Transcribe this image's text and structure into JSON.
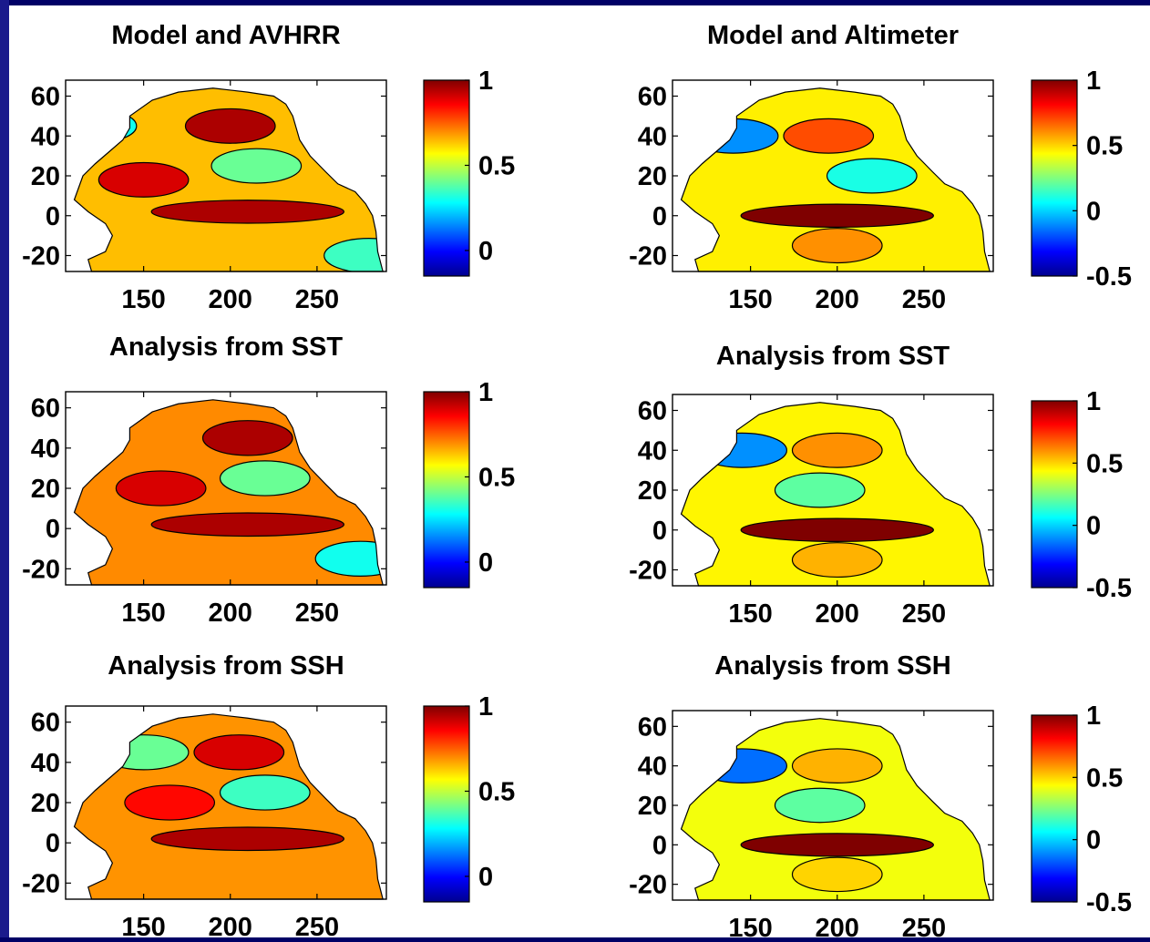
{
  "colors": {
    "background_frame": "#000066",
    "land": "#ffffff",
    "contour": "#000000",
    "colormap": [
      "#00008f",
      "#0000ff",
      "#007fff",
      "#00ffff",
      "#7fff7f",
      "#ffff00",
      "#ff7f00",
      "#ff0000",
      "#7f0000"
    ]
  },
  "chart_data": [
    {
      "type": "heatmap",
      "panel": "top-left",
      "title": "Model and AVHRR",
      "xticks": [
        "150",
        "200",
        "250"
      ],
      "yticks": [
        "60",
        "40",
        "20",
        "0",
        "-20"
      ],
      "xlim": [
        105,
        290
      ],
      "ylim": [
        -28,
        68
      ],
      "colorbar": {
        "ticks": [
          "1",
          "0.5",
          "0"
        ],
        "range": [
          -0.15,
          1
        ]
      },
      "regions": [
        {
          "lon": 200,
          "lat": 45,
          "value": 0.95
        },
        {
          "lon": 150,
          "lat": 18,
          "value": 0.9
        },
        {
          "lon": 210,
          "lat": 2,
          "value": 0.95
        },
        {
          "lon": 215,
          "lat": 25,
          "value": 0.4
        },
        {
          "lon": 280,
          "lat": -20,
          "value": 0.35
        },
        {
          "lon": 120,
          "lat": 45,
          "value": 0.3
        }
      ]
    },
    {
      "type": "heatmap",
      "panel": "top-right",
      "title": "Model and Altimeter",
      "xticks": [
        "150",
        "200",
        "250"
      ],
      "yticks": [
        "60",
        "40",
        "20",
        "0",
        "-20"
      ],
      "xlim": [
        105,
        290
      ],
      "ylim": [
        -28,
        68
      ],
      "colorbar": {
        "ticks": [
          "1",
          "0.5",
          "0",
          "-0.5"
        ],
        "range": [
          -0.5,
          1
        ]
      },
      "regions": [
        {
          "lon": 200,
          "lat": 0,
          "value": 1.0
        },
        {
          "lon": 195,
          "lat": 40,
          "value": 0.7
        },
        {
          "lon": 220,
          "lat": 20,
          "value": 0.1
        },
        {
          "lon": 140,
          "lat": 40,
          "value": -0.1
        },
        {
          "lon": 200,
          "lat": -15,
          "value": 0.6
        }
      ]
    },
    {
      "type": "heatmap",
      "panel": "middle-left",
      "title": "Analysis from SST",
      "xticks": [
        "150",
        "200",
        "250"
      ],
      "yticks": [
        "60",
        "40",
        "20",
        "0",
        "-20"
      ],
      "xlim": [
        105,
        290
      ],
      "ylim": [
        -28,
        68
      ],
      "colorbar": {
        "ticks": [
          "1",
          "0.5",
          "0"
        ],
        "range": [
          -0.15,
          1
        ]
      },
      "regions": [
        {
          "lon": 210,
          "lat": 45,
          "value": 0.95
        },
        {
          "lon": 160,
          "lat": 20,
          "value": 0.9
        },
        {
          "lon": 210,
          "lat": 2,
          "value": 0.95
        },
        {
          "lon": 220,
          "lat": 25,
          "value": 0.4
        },
        {
          "lon": 275,
          "lat": -15,
          "value": 0.3
        }
      ]
    },
    {
      "type": "heatmap",
      "panel": "middle-right",
      "title": "Analysis from SST",
      "xticks": [
        "150",
        "200",
        "250"
      ],
      "yticks": [
        "60",
        "40",
        "20",
        "0",
        "-20"
      ],
      "xlim": [
        105,
        290
      ],
      "ylim": [
        -28,
        68
      ],
      "colorbar": {
        "ticks": [
          "1",
          "0.5",
          "0",
          "-0.5"
        ],
        "range": [
          -0.5,
          1
        ]
      },
      "regions": [
        {
          "lon": 200,
          "lat": 0,
          "value": 1.0
        },
        {
          "lon": 200,
          "lat": 40,
          "value": 0.6
        },
        {
          "lon": 190,
          "lat": 20,
          "value": 0.2
        },
        {
          "lon": 145,
          "lat": 40,
          "value": -0.1
        },
        {
          "lon": 200,
          "lat": -15,
          "value": 0.55
        }
      ]
    },
    {
      "type": "heatmap",
      "panel": "bottom-left",
      "title": "Analysis from SSH",
      "xticks": [
        "150",
        "200",
        "250"
      ],
      "yticks": [
        "60",
        "40",
        "20",
        "0",
        "-20"
      ],
      "xlim": [
        105,
        290
      ],
      "ylim": [
        -28,
        68
      ],
      "colorbar": {
        "ticks": [
          "1",
          "0.5",
          "0"
        ],
        "range": [
          -0.15,
          1
        ]
      },
      "regions": [
        {
          "lon": 205,
          "lat": 45,
          "value": 0.9
        },
        {
          "lon": 165,
          "lat": 20,
          "value": 0.85
        },
        {
          "lon": 210,
          "lat": 2,
          "value": 0.95
        },
        {
          "lon": 220,
          "lat": 25,
          "value": 0.35
        },
        {
          "lon": 150,
          "lat": 45,
          "value": 0.4
        }
      ]
    },
    {
      "type": "heatmap",
      "panel": "bottom-right",
      "title": "Analysis from SSH",
      "xticks": [
        "150",
        "200",
        "250"
      ],
      "yticks": [
        "60",
        "40",
        "20",
        "0",
        "-20"
      ],
      "xlim": [
        105,
        290
      ],
      "ylim": [
        -28,
        68
      ],
      "colorbar": {
        "ticks": [
          "1",
          "0.5",
          "0",
          "-0.5"
        ],
        "range": [
          -0.5,
          1
        ]
      },
      "regions": [
        {
          "lon": 200,
          "lat": 0,
          "value": 1.0
        },
        {
          "lon": 200,
          "lat": 40,
          "value": 0.55
        },
        {
          "lon": 190,
          "lat": 20,
          "value": 0.2
        },
        {
          "lon": 145,
          "lat": 40,
          "value": -0.15
        },
        {
          "lon": 200,
          "lat": -15,
          "value": 0.5
        }
      ]
    }
  ]
}
